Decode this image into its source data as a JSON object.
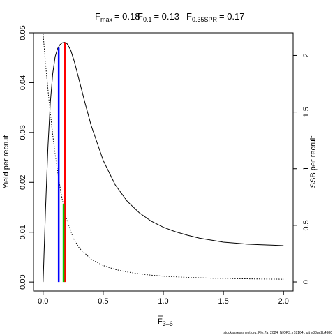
{
  "chart_data": {
    "type": "line",
    "title": {
      "fmax_label": "F",
      "fmax_sub": "max",
      "fmax_value": "= 0.18",
      "f01_label": "F",
      "f01_sub": "0.1",
      "f01_value": "= 0.13",
      "fspr_label": "F",
      "fspr_sub": "0.35SPR",
      "fspr_value": "= 0.17"
    },
    "xlabel": {
      "main": "F",
      "sub": "3–6"
    },
    "ylabel_left": "Yield per recruit",
    "ylabel_right": "SSB per recruit",
    "xlim": [
      -0.08,
      2.08
    ],
    "ylim_left": [
      -0.0018,
      0.05
    ],
    "ylim_right": [
      -0.08,
      2.2
    ],
    "x_ticks": [
      {
        "value": 0,
        "label": "0.0"
      },
      {
        "value": 0.5,
        "label": "0.5"
      },
      {
        "value": 1.0,
        "label": "1.0"
      },
      {
        "value": 1.5,
        "label": "1.5"
      },
      {
        "value": 2.0,
        "label": "2.0"
      }
    ],
    "y_left_ticks": [
      {
        "value": 0,
        "label": "0.00"
      },
      {
        "value": 0.01,
        "label": "0.01"
      },
      {
        "value": 0.02,
        "label": "0.02"
      },
      {
        "value": 0.03,
        "label": "0.03"
      },
      {
        "value": 0.04,
        "label": "0.04"
      },
      {
        "value": 0.05,
        "label": "0.05"
      }
    ],
    "y_right_ticks": [
      {
        "value": 0,
        "label": "0"
      },
      {
        "value": 0.5,
        "label": "0.5"
      },
      {
        "value": 1.0,
        "label": "1"
      },
      {
        "value": 1.5,
        "label": "1.5"
      },
      {
        "value": 2.0,
        "label": "2"
      }
    ],
    "series": [
      {
        "axis": "left",
        "style": "solid",
        "color": "#000000",
        "x": [
          0,
          0.02,
          0.04,
          0.06,
          0.08,
          0.1,
          0.12,
          0.14,
          0.16,
          0.18,
          0.2,
          0.23,
          0.26,
          0.3,
          0.35,
          0.4,
          0.5,
          0.6,
          0.7,
          0.8,
          0.9,
          1.0,
          1.1,
          1.2,
          1.3,
          1.4,
          1.5,
          1.6,
          1.7,
          1.8,
          1.9,
          2.0
        ],
        "y": [
          0,
          0.0145,
          0.027,
          0.036,
          0.0418,
          0.0452,
          0.0468,
          0.0476,
          0.048,
          0.0481,
          0.0478,
          0.0465,
          0.0442,
          0.0405,
          0.0358,
          0.0314,
          0.0244,
          0.0195,
          0.0162,
          0.0139,
          0.0122,
          0.011,
          0.0101,
          0.0094,
          0.0088,
          0.0084,
          0.008,
          0.0078,
          0.0076,
          0.0075,
          0.0074,
          0.0073
        ]
      },
      {
        "axis": "right",
        "style": "dotted",
        "color": "#000000",
        "x": [
          0,
          0.02,
          0.05,
          0.08,
          0.1,
          0.13,
          0.15,
          0.18,
          0.2,
          0.25,
          0.3,
          0.4,
          0.5,
          0.6,
          0.7,
          0.8,
          0.9,
          1.0,
          1.2,
          1.4,
          1.6,
          1.8,
          2.0
        ],
        "y": [
          2.19,
          1.93,
          1.59,
          1.3,
          1.13,
          0.91,
          0.78,
          0.62,
          0.54,
          0.39,
          0.3,
          0.2,
          0.145,
          0.11,
          0.088,
          0.072,
          0.06,
          0.051,
          0.04,
          0.033,
          0.029,
          0.026,
          0.024
        ]
      }
    ],
    "vertical_lines": [
      {
        "name": "F0.1",
        "x": 0.13,
        "y": 0.047,
        "color": "#0000ff"
      },
      {
        "name": "Fmax",
        "x": 0.18,
        "y": 0.0481,
        "color": "#ff0000"
      },
      {
        "name": "F0.35SPR",
        "x": 0.17,
        "y_right": 0.69,
        "color": "#00cc00"
      }
    ]
  },
  "footer": "stockassessment.org, Ple.7a_2024_NIOFS, r18164 , git e38ae2b4980"
}
